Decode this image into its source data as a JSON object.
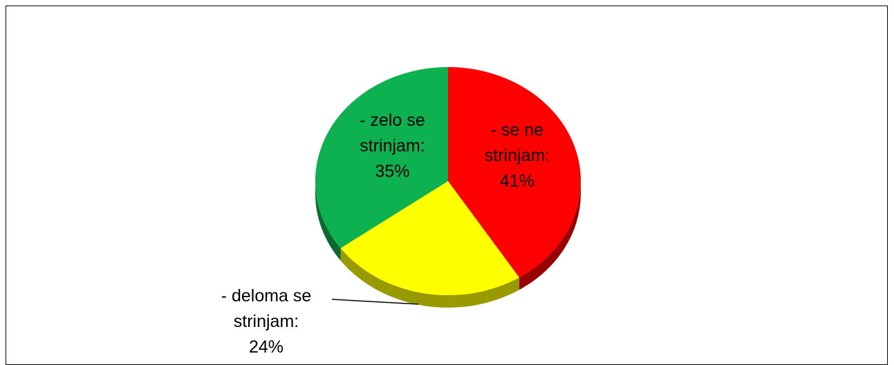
{
  "chart_data": {
    "type": "pie",
    "categories": [
      "- se ne strinjam:",
      "- deloma se strinjam:",
      "- zelo se strinjam:"
    ],
    "values": [
      41,
      24,
      35
    ],
    "value_labels": [
      "41%",
      "24%",
      "35%"
    ],
    "colors": [
      "#ff0000",
      "#ffff00",
      "#0db14f"
    ]
  }
}
